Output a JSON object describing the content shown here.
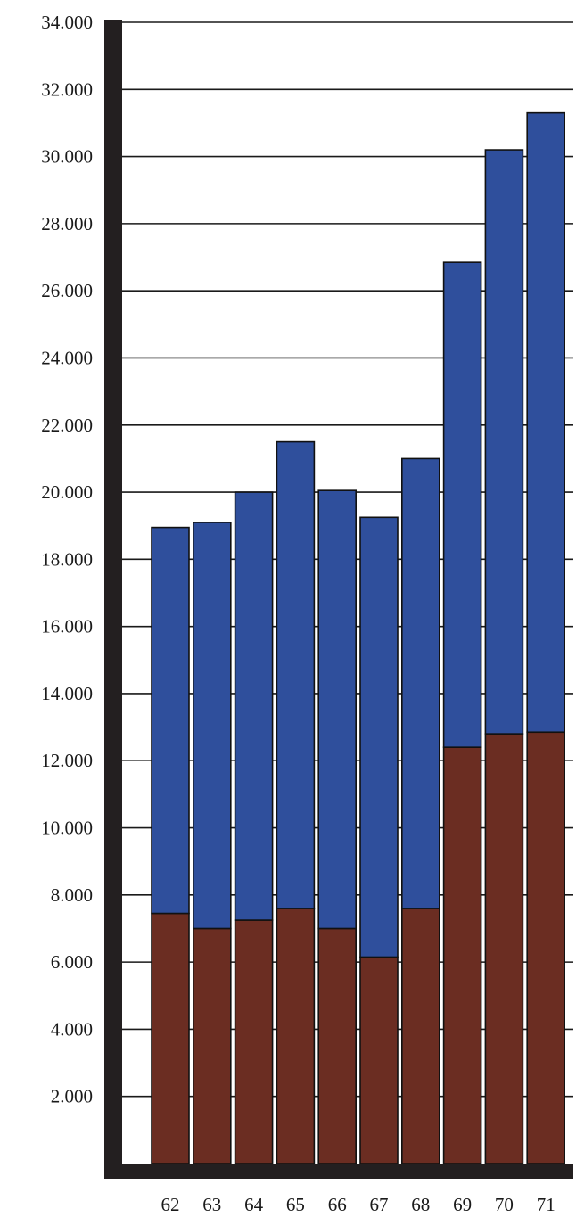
{
  "chart_data": {
    "type": "bar",
    "stacked": true,
    "title": "",
    "xlabel": "",
    "ylabel": "",
    "ylim": [
      0,
      34000
    ],
    "grid": true,
    "legend": "none",
    "categories": [
      "62",
      "63",
      "64",
      "65",
      "66",
      "67",
      "68",
      "69",
      "70",
      "71"
    ],
    "yticks": [
      {
        "value": 2000,
        "label": "2.000"
      },
      {
        "value": 4000,
        "label": "4.000"
      },
      {
        "value": 6000,
        "label": "6.000"
      },
      {
        "value": 8000,
        "label": "8.000"
      },
      {
        "value": 10000,
        "label": "10.000"
      },
      {
        "value": 12000,
        "label": "12.000"
      },
      {
        "value": 14000,
        "label": "14.000"
      },
      {
        "value": 16000,
        "label": "16.000"
      },
      {
        "value": 18000,
        "label": "18.000"
      },
      {
        "value": 20000,
        "label": "20.000"
      },
      {
        "value": 22000,
        "label": "22.000"
      },
      {
        "value": 24000,
        "label": "24.000"
      },
      {
        "value": 26000,
        "label": "26.000"
      },
      {
        "value": 28000,
        "label": "28.000"
      },
      {
        "value": 30000,
        "label": "30.000"
      },
      {
        "value": 32000,
        "label": "32.000"
      },
      {
        "value": 34000,
        "label": "34.000"
      }
    ],
    "series": [
      {
        "color": "#6b2d22",
        "values": [
          7450,
          7000,
          7250,
          7600,
          7000,
          6150,
          7600,
          12400,
          12800,
          12850
        ]
      },
      {
        "color": "#2f4f9c",
        "values": [
          11500,
          12100,
          12750,
          13900,
          13050,
          13100,
          13400,
          14450,
          17400,
          18450
        ]
      }
    ],
    "colors": {
      "axis": "#231f20",
      "grid": "#1a1a1a",
      "bar_outline": "#111111"
    }
  }
}
